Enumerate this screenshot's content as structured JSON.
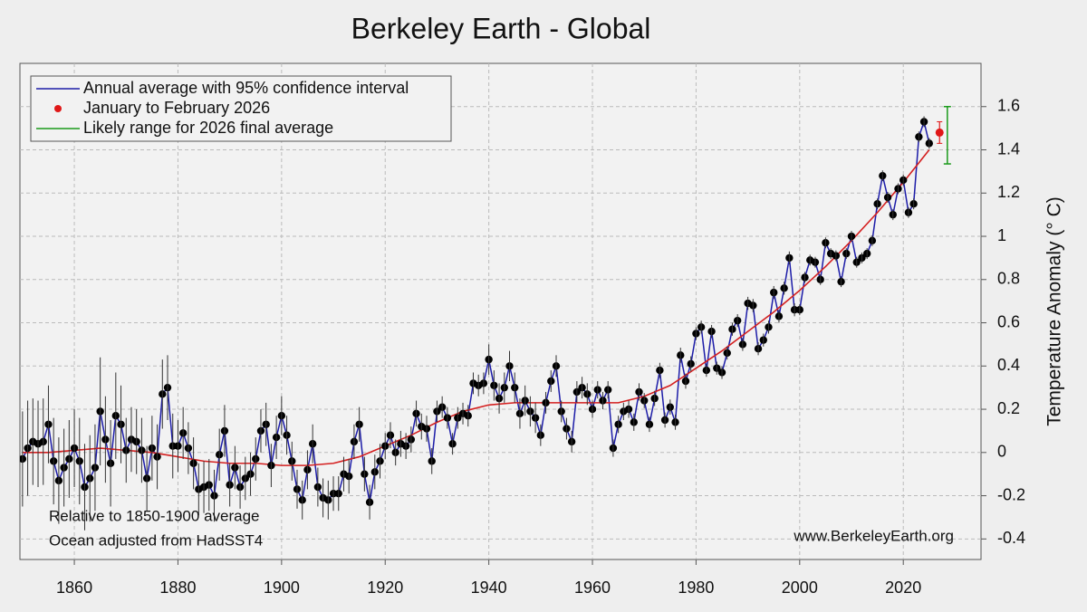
{
  "chart_data": {
    "type": "line",
    "title": "Berkeley Earth - Global",
    "ylabel": "Temperature Anomaly (° C)",
    "annotations": [
      "Relative to 1850-1900 average",
      "Ocean adjusted from HadSST4",
      "www.BerkeleyEarth.org"
    ],
    "xlim": [
      1849.5,
      2035
    ],
    "ylim": [
      -0.495,
      1.8
    ],
    "xticks": [
      1860,
      1880,
      1900,
      1920,
      1940,
      1960,
      1980,
      2000,
      2020
    ],
    "yticks": [
      -0.4,
      -0.2,
      0,
      0.2,
      0.4,
      0.6,
      0.8,
      1,
      1.2,
      1.4,
      1.6
    ],
    "grid": true,
    "legend": "upper left",
    "x": [
      1850,
      1851,
      1852,
      1853,
      1854,
      1855,
      1856,
      1857,
      1858,
      1859,
      1860,
      1861,
      1862,
      1863,
      1864,
      1865,
      1866,
      1867,
      1868,
      1869,
      1870,
      1871,
      1872,
      1873,
      1874,
      1875,
      1876,
      1877,
      1878,
      1879,
      1880,
      1881,
      1882,
      1883,
      1884,
      1885,
      1886,
      1887,
      1888,
      1889,
      1890,
      1891,
      1892,
      1893,
      1894,
      1895,
      1896,
      1897,
      1898,
      1899,
      1900,
      1901,
      1902,
      1903,
      1904,
      1905,
      1906,
      1907,
      1908,
      1909,
      1910,
      1911,
      1912,
      1913,
      1914,
      1915,
      1916,
      1917,
      1918,
      1919,
      1920,
      1921,
      1922,
      1923,
      1924,
      1925,
      1926,
      1927,
      1928,
      1929,
      1930,
      1931,
      1932,
      1933,
      1934,
      1935,
      1936,
      1937,
      1938,
      1939,
      1940,
      1941,
      1942,
      1943,
      1944,
      1945,
      1946,
      1947,
      1948,
      1949,
      1950,
      1951,
      1952,
      1953,
      1954,
      1955,
      1956,
      1957,
      1958,
      1959,
      1960,
      1961,
      1962,
      1963,
      1964,
      1965,
      1966,
      1967,
      1968,
      1969,
      1970,
      1971,
      1972,
      1973,
      1974,
      1975,
      1976,
      1977,
      1978,
      1979,
      1980,
      1981,
      1982,
      1983,
      1984,
      1985,
      1986,
      1987,
      1988,
      1989,
      1990,
      1991,
      1992,
      1993,
      1994,
      1995,
      1996,
      1997,
      1998,
      1999,
      2000,
      2001,
      2002,
      2003,
      2004,
      2005,
      2006,
      2007,
      2008,
      2009,
      2010,
      2011,
      2012,
      2013,
      2014,
      2015,
      2016,
      2017,
      2018,
      2019,
      2020,
      2021,
      2022,
      2023,
      2024,
      2025
    ],
    "series": [
      {
        "name": "Annual average with 95% confidence interval",
        "color": "#1c1ca8",
        "values": [
          -0.03,
          0.02,
          0.05,
          0.04,
          0.05,
          0.13,
          -0.04,
          -0.13,
          -0.07,
          -0.03,
          0.02,
          -0.04,
          -0.16,
          -0.12,
          -0.07,
          0.19,
          0.06,
          -0.05,
          0.17,
          0.13,
          0.01,
          0.06,
          0.05,
          0.01,
          -0.12,
          0.02,
          -0.02,
          0.27,
          0.3,
          0.03,
          0.03,
          0.09,
          0.02,
          -0.05,
          -0.17,
          -0.16,
          -0.15,
          -0.2,
          -0.01,
          0.1,
          -0.15,
          -0.07,
          -0.16,
          -0.12,
          -0.1,
          -0.03,
          0.1,
          0.13,
          -0.06,
          0.07,
          0.17,
          0.08,
          -0.04,
          -0.17,
          -0.22,
          -0.08,
          0.04,
          -0.16,
          -0.21,
          -0.22,
          -0.19,
          -0.19,
          -0.1,
          -0.11,
          0.05,
          0.13,
          -0.1,
          -0.23,
          -0.09,
          -0.04,
          0.03,
          0.08,
          0.0,
          0.04,
          0.03,
          0.06,
          0.18,
          0.12,
          0.11,
          -0.04,
          0.19,
          0.21,
          0.16,
          0.04,
          0.16,
          0.18,
          0.17,
          0.32,
          0.31,
          0.32,
          0.43,
          0.31,
          0.25,
          0.3,
          0.4,
          0.3,
          0.18,
          0.24,
          0.19,
          0.16,
          0.08,
          0.23,
          0.33,
          0.4,
          0.19,
          0.11,
          0.05,
          0.28,
          0.3,
          0.27,
          0.2,
          0.29,
          0.24,
          0.29,
          0.02,
          0.13,
          0.19,
          0.2,
          0.14,
          0.28,
          0.24,
          0.13,
          0.25,
          0.38,
          0.15,
          0.21,
          0.14,
          0.45,
          0.33,
          0.41,
          0.55,
          0.58,
          0.38,
          0.56,
          0.39,
          0.37,
          0.46,
          0.57,
          0.61,
          0.5,
          0.69,
          0.68,
          0.48,
          0.52,
          0.58,
          0.74,
          0.63,
          0.76,
          0.9,
          0.66,
          0.66,
          0.81,
          0.89,
          0.88,
          0.8,
          0.97,
          0.92,
          0.91,
          0.79,
          0.92,
          1.0,
          0.88,
          0.9,
          0.92,
          0.98,
          1.15,
          1.28,
          1.18,
          1.1,
          1.22,
          1.26,
          1.11,
          1.15,
          1.46,
          1.53,
          1.43
        ],
        "errors": [
          0.22,
          0.22,
          0.2,
          0.2,
          0.2,
          0.18,
          0.2,
          0.2,
          0.18,
          0.18,
          0.18,
          0.2,
          0.2,
          0.2,
          0.2,
          0.25,
          0.2,
          0.2,
          0.2,
          0.18,
          0.15,
          0.15,
          0.15,
          0.15,
          0.15,
          0.15,
          0.15,
          0.16,
          0.15,
          0.15,
          0.12,
          0.12,
          0.12,
          0.12,
          0.12,
          0.12,
          0.12,
          0.12,
          0.12,
          0.12,
          0.1,
          0.1,
          0.1,
          0.1,
          0.1,
          0.1,
          0.1,
          0.1,
          0.1,
          0.1,
          0.09,
          0.09,
          0.09,
          0.09,
          0.09,
          0.09,
          0.09,
          0.09,
          0.09,
          0.09,
          0.08,
          0.08,
          0.08,
          0.08,
          0.08,
          0.08,
          0.08,
          0.08,
          0.08,
          0.08,
          0.06,
          0.06,
          0.06,
          0.06,
          0.06,
          0.06,
          0.06,
          0.06,
          0.06,
          0.06,
          0.05,
          0.05,
          0.05,
          0.05,
          0.05,
          0.05,
          0.05,
          0.05,
          0.05,
          0.05,
          0.07,
          0.07,
          0.07,
          0.07,
          0.07,
          0.07,
          0.07,
          0.07,
          0.07,
          0.07,
          0.05,
          0.05,
          0.05,
          0.05,
          0.05,
          0.05,
          0.05,
          0.05,
          0.05,
          0.05,
          0.04,
          0.04,
          0.04,
          0.04,
          0.04,
          0.04,
          0.04,
          0.04,
          0.04,
          0.04,
          0.035,
          0.035,
          0.035,
          0.035,
          0.035,
          0.035,
          0.035,
          0.035,
          0.035,
          0.035,
          0.03,
          0.03,
          0.03,
          0.03,
          0.03,
          0.03,
          0.03,
          0.03,
          0.03,
          0.03,
          0.03,
          0.03,
          0.03,
          0.03,
          0.03,
          0.03,
          0.03,
          0.03,
          0.03,
          0.03,
          0.025,
          0.025,
          0.025,
          0.025,
          0.025,
          0.025,
          0.025,
          0.025,
          0.025,
          0.025,
          0.025,
          0.025,
          0.025,
          0.025,
          0.025,
          0.025,
          0.025,
          0.025,
          0.025,
          0.025,
          0.025,
          0.025,
          0.025,
          0.025,
          0.025,
          0.025
        ]
      }
    ],
    "smooth": {
      "color": "#d42020",
      "x": [
        1850,
        1855,
        1860,
        1865,
        1870,
        1875,
        1880,
        1885,
        1890,
        1895,
        1900,
        1905,
        1910,
        1915,
        1920,
        1925,
        1930,
        1935,
        1940,
        1945,
        1950,
        1955,
        1960,
        1965,
        1970,
        1975,
        1980,
        1985,
        1990,
        1995,
        2000,
        2005,
        2010,
        2015,
        2020,
        2025
      ],
      "values": [
        0.0,
        0.0,
        0.01,
        0.02,
        0.01,
        0.0,
        -0.02,
        -0.04,
        -0.05,
        -0.05,
        -0.06,
        -0.06,
        -0.05,
        -0.02,
        0.03,
        0.08,
        0.14,
        0.19,
        0.22,
        0.23,
        0.23,
        0.23,
        0.23,
        0.23,
        0.26,
        0.31,
        0.39,
        0.47,
        0.56,
        0.65,
        0.75,
        0.86,
        0.98,
        1.11,
        1.25,
        1.4
      ]
    },
    "point": {
      "name": "January to February 2026",
      "color": "#e01818",
      "x": 2027,
      "value": 1.48,
      "error": 0.05
    },
    "range": {
      "name": "Likely range for 2026 final average",
      "color": "#1a9a1a",
      "x": 2028.5,
      "low": 1.335,
      "high": 1.6
    }
  }
}
